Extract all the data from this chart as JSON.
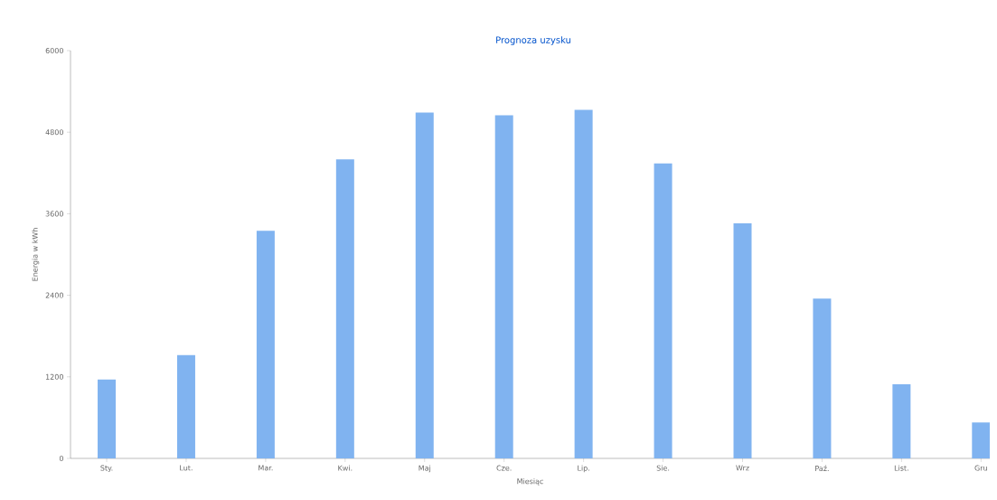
{
  "chart_data": {
    "type": "bar",
    "title": "Prognoza uzysku",
    "xlabel": "Miesiąc",
    "ylabel": "Energia w kWh",
    "categories": [
      "Sty.",
      "Lut.",
      "Mar.",
      "Kwi.",
      "Maj",
      "Cze.",
      "Lip.",
      "Sie.",
      "Wrz",
      "Paź.",
      "List.",
      "Gru"
    ],
    "values": [
      1160,
      1520,
      3350,
      4400,
      5090,
      5050,
      5130,
      4340,
      3460,
      2350,
      1090,
      530
    ],
    "color": "#80b3f0",
    "ylim": [
      0,
      6000
    ],
    "yticks": [
      0,
      1200,
      2400,
      3600,
      4800,
      6000
    ],
    "grid": false
  }
}
